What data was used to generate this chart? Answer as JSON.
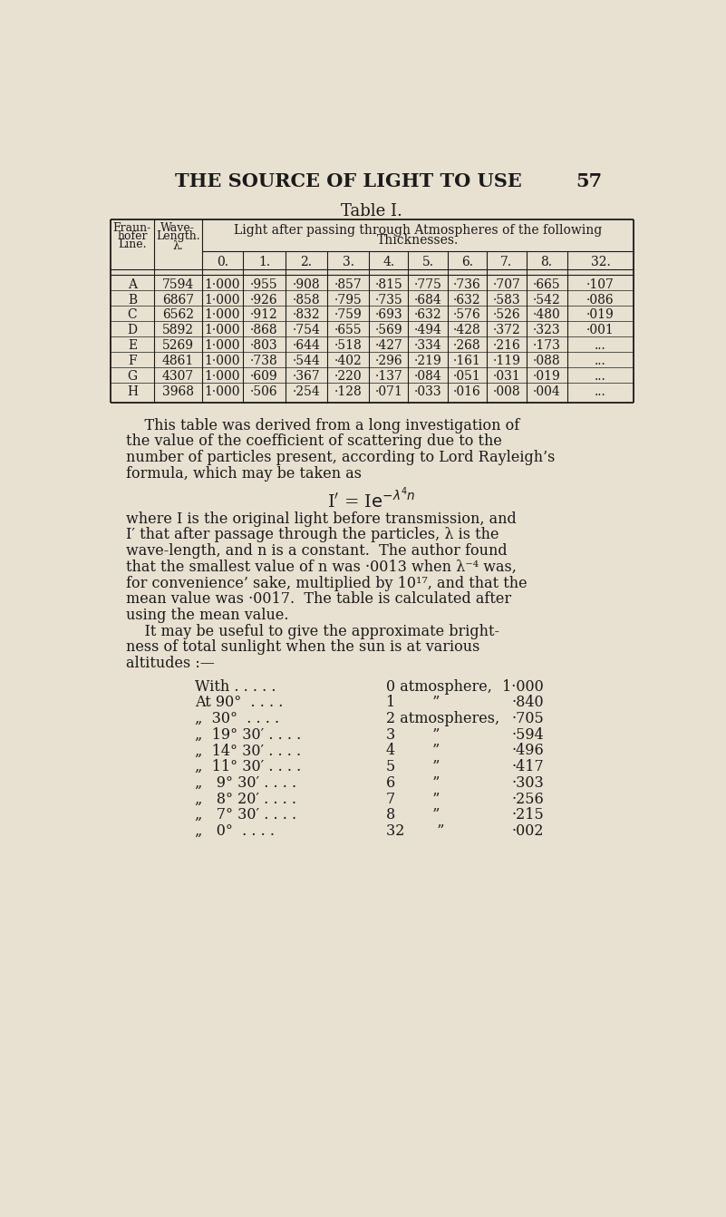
{
  "page_title_left": "THE SOURCE OF LIGHT TO USE",
  "page_number": "57",
  "table_title": "Table I.",
  "bg_color": "#e8e0d0",
  "text_color": "#1a1a1a",
  "col_headers_nums": [
    "0.",
    "1.",
    "2.",
    "3.",
    "4.",
    "5.",
    "6.",
    "7.",
    "8.",
    "32."
  ],
  "table_rows": [
    [
      "A",
      "7594",
      "1·000",
      "·955",
      "·908",
      "·857",
      "·815",
      "·775",
      "·736",
      "·707",
      "·665",
      "·107"
    ],
    [
      "B",
      "6867",
      "1·000",
      "·926",
      "·858",
      "·795",
      "·735",
      "·684",
      "·632",
      "·583",
      "·542",
      "·086"
    ],
    [
      "C",
      "6562",
      "1·000",
      "·912",
      "·832",
      "·759",
      "·693",
      "·632",
      "·576",
      "·526",
      "·480",
      "·019"
    ],
    [
      "D",
      "5892",
      "1·000",
      "·868",
      "·754",
      "·655",
      "·569",
      "·494",
      "·428",
      "·372",
      "·323",
      "·001"
    ],
    [
      "E",
      "5269",
      "1·000",
      "·803",
      "·644",
      "·518",
      "·427",
      "·334",
      "·268",
      "·216",
      "·173",
      "..."
    ],
    [
      "F",
      "4861",
      "1·000",
      "·738",
      "·544",
      "·402",
      "·296",
      "·219",
      "·161",
      "·119",
      "·088",
      "..."
    ],
    [
      "G",
      "4307",
      "1·000",
      "·609",
      "·367",
      "·220",
      "·137",
      "·084",
      "·051",
      "·031",
      "·019",
      "..."
    ],
    [
      "H",
      "3968",
      "1·000",
      "·506",
      "·254",
      "·128",
      "·071",
      "·033",
      "·016",
      "·008",
      "·004",
      "..."
    ]
  ],
  "body_text": [
    "    This table was derived from a long investigation of",
    "the value of the coefficient of scattering due to the",
    "number of particles present, according to Lord Rayleigh’s",
    "formula, which may be taken as"
  ],
  "body_text2": [
    "where I is the original light before transmission, and",
    "I′ that after passage through the particles, λ is the",
    "wave-length, and n is a constant.  The author found",
    "that the smallest value of n was ·0013 when λ⁻⁴ was,",
    "for convenience’ sake, multiplied by 10¹⁷, and that the",
    "mean value was ·0017.  The table is calculated after",
    "using the mean value.",
    "    It may be useful to give the approximate bright-",
    "ness of total sunlight when the sun is at various",
    "altitudes :—"
  ],
  "altitude_rows": [
    [
      "With . . . . .",
      "0 atmosphere,",
      "1·000"
    ],
    [
      "At 90°  . . . .",
      "1        ”",
      "·840"
    ],
    [
      "„  30°  . . . .",
      "2 atmospheres,",
      "·705"
    ],
    [
      "„  19° 30′ . . . .",
      "3        ”",
      "·594"
    ],
    [
      "„  14° 30′ . . . .",
      "4        ”",
      "·496"
    ],
    [
      "„  11° 30′ . . . .",
      "5        ”",
      "·417"
    ],
    [
      "„   9° 30′ . . . .",
      "6        ”",
      "·303"
    ],
    [
      "„   8° 20′ . . . .",
      "7        ”",
      "·256"
    ],
    [
      "„   7° 30′ . . . .",
      "8        ”",
      "·215"
    ],
    [
      "„   0°  . . . .",
      "32       ”",
      "·002"
    ]
  ]
}
